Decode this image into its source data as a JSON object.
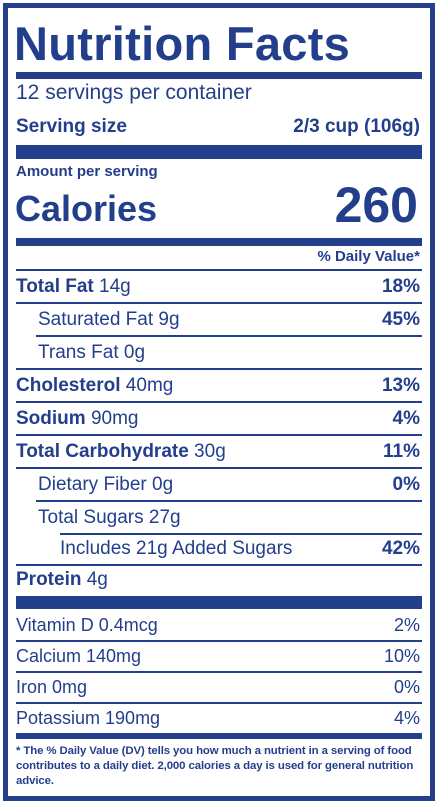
{
  "title": "Nutrition Facts",
  "servings_per_container": "12 servings per container",
  "serving_size": {
    "label": "Serving size",
    "value": "2/3 cup (106g)"
  },
  "amount_per_serving": "Amount per serving",
  "calories": {
    "label": "Calories",
    "value": "260"
  },
  "daily_value_header": "% Daily Value*",
  "nutrients": [
    {
      "name": "Total Fat",
      "amount": "14g",
      "dv": "18%"
    },
    {
      "name": "Saturated Fat",
      "amount": "9g",
      "dv": "45%"
    },
    {
      "name": "Trans Fat",
      "amount": "0g",
      "dv": ""
    },
    {
      "name": "Cholesterol",
      "amount": "40mg",
      "dv": "13%"
    },
    {
      "name": "Sodium",
      "amount": "90mg",
      "dv": "4%"
    },
    {
      "name": "Total Carbohydrate",
      "amount": "30g",
      "dv": "11%"
    },
    {
      "name": "Dietary Fiber",
      "amount": "0g",
      "dv": "0%"
    },
    {
      "name": "Total Sugars",
      "amount": "27g",
      "dv": ""
    },
    {
      "name": "Includes 21g Added Sugars",
      "amount": "",
      "dv": "42%"
    },
    {
      "name": "Protein",
      "amount": "4g",
      "dv": ""
    }
  ],
  "vitamins": [
    {
      "name": "Vitamin D 0.4mcg",
      "dv": "2%"
    },
    {
      "name": "Calcium 140mg",
      "dv": "10%"
    },
    {
      "name": "Iron 0mg",
      "dv": "0%"
    },
    {
      "name": "Potassium 190mg",
      "dv": "4%"
    }
  ],
  "footnote": "* The % Daily Value (DV) tells you how much a nutrient in a serving of food contributes to a daily diet. 2,000 calories a day is used for general nutrition advice.",
  "colors": {
    "ink": "#233f8c",
    "background": "#ffffff"
  }
}
